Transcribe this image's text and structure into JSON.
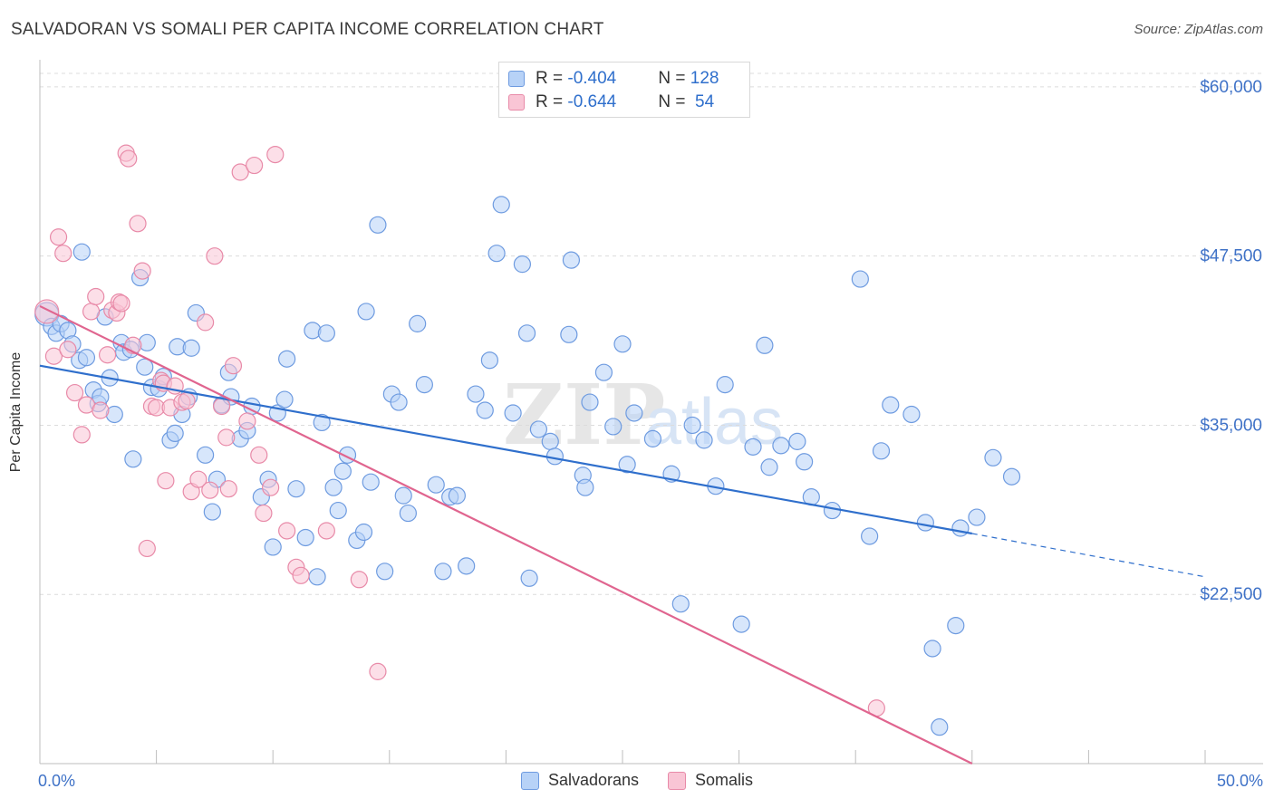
{
  "title": "SALVADORAN VS SOMALI PER CAPITA INCOME CORRELATION CHART",
  "source": "Source: ZipAtlas.com",
  "watermark": {
    "zip": "ZIP",
    "atlas": "atlas"
  },
  "stats": [
    {
      "r_label": "R = ",
      "r_value": "-0.404",
      "n_label": "N = ",
      "n_value": "128",
      "fill": "#b7d2f7",
      "stroke": "#6e9be0"
    },
    {
      "r_label": "R = ",
      "r_value": "-0.644",
      "n_label": "N = ",
      "n_value": " 54",
      "fill": "#f9c5d5",
      "stroke": "#e88aa8"
    }
  ],
  "chart_data": {
    "type": "scatter",
    "title": "SALVADORAN VS SOMALI PER CAPITA INCOME CORRELATION CHART",
    "xlabel": "",
    "ylabel": "Per Capita Income",
    "xlim": [
      0,
      50
    ],
    "ylim": [
      10000,
      62000
    ],
    "x_tick_labels": [
      {
        "x": 0,
        "label": "0.0%"
      },
      {
        "x": 50,
        "label": "50.0%"
      }
    ],
    "y_ticks": [
      {
        "y": 22500,
        "label": "$22,500"
      },
      {
        "y": 35000,
        "label": "$35,000"
      },
      {
        "y": 47500,
        "label": "$47,500"
      },
      {
        "y": 60000,
        "label": "$60,000"
      }
    ],
    "grid": true,
    "legend_position": "bottom",
    "series": [
      {
        "name": "Salvadorans",
        "color": "#6e9be0",
        "fill": "#b7d2f7",
        "trend": {
          "x0": 0,
          "y0": 39400,
          "x1": 40,
          "y1": 27000,
          "dash_to_x": 50,
          "dash_to_y": 23800,
          "color": "#2f6fcc"
        },
        "points": [
          [
            0.3,
            43200
          ],
          [
            0.5,
            42300
          ],
          [
            0.7,
            41800
          ],
          [
            0.9,
            42500
          ],
          [
            1.2,
            42000
          ],
          [
            1.4,
            41000
          ],
          [
            1.7,
            39800
          ],
          [
            1.8,
            47800
          ],
          [
            2.0,
            40000
          ],
          [
            2.3,
            37600
          ],
          [
            2.5,
            36600
          ],
          [
            2.6,
            37100
          ],
          [
            2.8,
            43000
          ],
          [
            3.0,
            38500
          ],
          [
            3.2,
            35800
          ],
          [
            3.5,
            41100
          ],
          [
            3.6,
            40400
          ],
          [
            3.9,
            40600
          ],
          [
            4.0,
            32500
          ],
          [
            4.3,
            45900
          ],
          [
            4.5,
            39300
          ],
          [
            4.6,
            41100
          ],
          [
            4.8,
            37800
          ],
          [
            5.1,
            37700
          ],
          [
            5.3,
            38600
          ],
          [
            5.6,
            33900
          ],
          [
            5.8,
            34400
          ],
          [
            5.9,
            40800
          ],
          [
            6.1,
            35800
          ],
          [
            6.4,
            37100
          ],
          [
            6.5,
            40700
          ],
          [
            6.7,
            43300
          ],
          [
            7.1,
            32800
          ],
          [
            7.4,
            28600
          ],
          [
            7.6,
            31000
          ],
          [
            7.8,
            36500
          ],
          [
            8.1,
            38900
          ],
          [
            8.2,
            37100
          ],
          [
            8.6,
            34000
          ],
          [
            8.9,
            34600
          ],
          [
            9.1,
            36400
          ],
          [
            9.5,
            29700
          ],
          [
            9.8,
            31000
          ],
          [
            10.0,
            26000
          ],
          [
            10.2,
            35900
          ],
          [
            10.5,
            36900
          ],
          [
            10.6,
            39900
          ],
          [
            11.0,
            30300
          ],
          [
            11.4,
            26700
          ],
          [
            11.7,
            42000
          ],
          [
            11.9,
            23800
          ],
          [
            12.1,
            35200
          ],
          [
            12.3,
            41800
          ],
          [
            12.6,
            30400
          ],
          [
            12.8,
            28700
          ],
          [
            13.0,
            31600
          ],
          [
            13.2,
            32800
          ],
          [
            13.6,
            26500
          ],
          [
            13.9,
            27100
          ],
          [
            14.0,
            43400
          ],
          [
            14.2,
            30800
          ],
          [
            14.5,
            49800
          ],
          [
            14.8,
            24200
          ],
          [
            15.1,
            37300
          ],
          [
            15.4,
            36700
          ],
          [
            15.6,
            29800
          ],
          [
            15.8,
            28500
          ],
          [
            16.2,
            42500
          ],
          [
            16.5,
            38000
          ],
          [
            17.0,
            30600
          ],
          [
            17.3,
            24200
          ],
          [
            17.6,
            29700
          ],
          [
            17.9,
            29800
          ],
          [
            18.3,
            24600
          ],
          [
            18.7,
            37300
          ],
          [
            19.1,
            36100
          ],
          [
            19.3,
            39800
          ],
          [
            19.6,
            47700
          ],
          [
            19.8,
            51300
          ],
          [
            20.3,
            35900
          ],
          [
            20.7,
            46900
          ],
          [
            20.9,
            41800
          ],
          [
            21.0,
            23700
          ],
          [
            21.4,
            34700
          ],
          [
            21.9,
            33800
          ],
          [
            22.1,
            32700
          ],
          [
            22.7,
            41700
          ],
          [
            22.8,
            47200
          ],
          [
            23.3,
            31300
          ],
          [
            23.4,
            30400
          ],
          [
            23.6,
            36700
          ],
          [
            24.2,
            38900
          ],
          [
            24.6,
            34900
          ],
          [
            25.0,
            41000
          ],
          [
            25.2,
            32100
          ],
          [
            25.5,
            35900
          ],
          [
            26.3,
            34000
          ],
          [
            27.1,
            31400
          ],
          [
            27.5,
            21800
          ],
          [
            28.0,
            35000
          ],
          [
            28.5,
            33900
          ],
          [
            29.0,
            30500
          ],
          [
            29.4,
            38000
          ],
          [
            30.1,
            20300
          ],
          [
            30.6,
            33400
          ],
          [
            31.1,
            40900
          ],
          [
            31.3,
            31900
          ],
          [
            31.8,
            33500
          ],
          [
            32.5,
            33800
          ],
          [
            32.8,
            32300
          ],
          [
            33.1,
            29700
          ],
          [
            34.0,
            28700
          ],
          [
            35.2,
            45800
          ],
          [
            35.6,
            26800
          ],
          [
            36.1,
            33100
          ],
          [
            36.5,
            36500
          ],
          [
            37.4,
            35800
          ],
          [
            38.0,
            27800
          ],
          [
            38.3,
            18500
          ],
          [
            38.6,
            12700
          ],
          [
            39.3,
            20200
          ],
          [
            39.5,
            27400
          ],
          [
            40.2,
            28200
          ],
          [
            40.9,
            32600
          ],
          [
            41.7,
            31200
          ]
        ]
      },
      {
        "name": "Somalis",
        "color": "#e88aa8",
        "fill": "#f9c5d5",
        "trend": {
          "x0": 0,
          "y0": 43800,
          "x1": 40,
          "y1": 10000,
          "color": "#e0658f"
        },
        "points": [
          [
            0.3,
            43400
          ],
          [
            0.6,
            40100
          ],
          [
            0.8,
            48900
          ],
          [
            1.0,
            47700
          ],
          [
            1.2,
            40600
          ],
          [
            1.5,
            37400
          ],
          [
            1.8,
            34300
          ],
          [
            2.0,
            36500
          ],
          [
            2.2,
            43400
          ],
          [
            2.4,
            44500
          ],
          [
            2.6,
            36100
          ],
          [
            2.9,
            40200
          ],
          [
            3.1,
            43500
          ],
          [
            3.3,
            43300
          ],
          [
            3.4,
            44100
          ],
          [
            3.5,
            44000
          ],
          [
            3.7,
            55100
          ],
          [
            3.8,
            54700
          ],
          [
            4.0,
            40900
          ],
          [
            4.2,
            49900
          ],
          [
            4.4,
            46400
          ],
          [
            4.6,
            25900
          ],
          [
            4.8,
            36400
          ],
          [
            5.0,
            36300
          ],
          [
            5.2,
            38300
          ],
          [
            5.3,
            38100
          ],
          [
            5.4,
            30900
          ],
          [
            5.6,
            36300
          ],
          [
            5.8,
            37900
          ],
          [
            6.1,
            36700
          ],
          [
            6.3,
            36800
          ],
          [
            6.5,
            30100
          ],
          [
            6.8,
            31000
          ],
          [
            7.1,
            42600
          ],
          [
            7.3,
            30200
          ],
          [
            7.5,
            47500
          ],
          [
            7.8,
            36400
          ],
          [
            8.0,
            34100
          ],
          [
            8.1,
            30300
          ],
          [
            8.3,
            39400
          ],
          [
            8.6,
            53700
          ],
          [
            8.9,
            35300
          ],
          [
            9.2,
            54200
          ],
          [
            9.4,
            32800
          ],
          [
            9.6,
            28500
          ],
          [
            9.9,
            30400
          ],
          [
            10.1,
            55000
          ],
          [
            10.6,
            27200
          ],
          [
            11.0,
            24500
          ],
          [
            11.2,
            23900
          ],
          [
            12.3,
            27200
          ],
          [
            13.7,
            23600
          ],
          [
            14.5,
            16800
          ],
          [
            35.9,
            14100
          ]
        ]
      }
    ]
  },
  "legend": [
    {
      "label": "Salvadorans",
      "fill": "#b7d2f7",
      "stroke": "#6e9be0"
    },
    {
      "label": "Somalis",
      "fill": "#f9c5d5",
      "stroke": "#e88aa8"
    }
  ]
}
